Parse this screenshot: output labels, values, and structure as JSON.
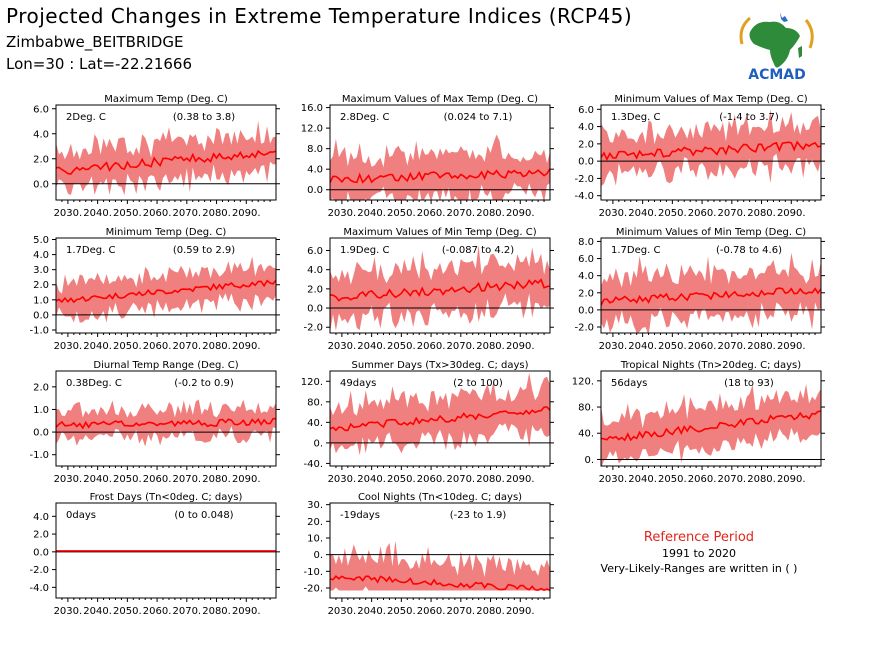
{
  "header": {
    "title": "Projected Changes in Extreme Temperature Indices (RCP45)",
    "subtitle": "Zimbabwe_BEITBRIDGE",
    "coords": "Lon=30 : Lat=-22.21666"
  },
  "logo": {
    "text": "ACMAD",
    "icon": "africa-map-logo"
  },
  "colors": {
    "mean_line": "#ff0000",
    "range_fill": "#f08080",
    "ref_title": "#e0251b"
  },
  "reference": {
    "title": "Reference Period",
    "years": "1991 to 2020",
    "note": "Very-Likely-Ranges are written in ( )"
  },
  "chart_data": [
    {
      "type": "area",
      "title": "Maximum Temp (Deg. C)",
      "value_label": "2Deg. C",
      "range_label": "(0.38 to 3.8)",
      "x_ticks": [
        "2030.",
        "2040.",
        "2050.",
        "2060.",
        "2070.",
        "2080.",
        "2090."
      ],
      "y_ticks": [
        "6.0",
        "4.0",
        "2.0",
        "0.0"
      ],
      "ylim": [
        -1.3,
        6.3
      ],
      "x_range": [
        2026,
        2100
      ],
      "trend": [
        1.0,
        2.6
      ],
      "noise": 0.35,
      "spread": 1.4,
      "grid": false
    },
    {
      "type": "area",
      "title": "Maximum Values of Max Temp (Deg. C)",
      "value_label": "2.8Deg. C",
      "range_label": "(0.024 to 7.1)",
      "x_ticks": [
        "2030.",
        "2040.",
        "2050.",
        "2060.",
        "2070.",
        "2080.",
        "2090."
      ],
      "y_ticks": [
        "16.0",
        "12.0",
        "8.0",
        "4.0",
        "0.0"
      ],
      "ylim": [
        -2.0,
        16.5
      ],
      "x_range": [
        2026,
        2100
      ],
      "trend": [
        2.0,
        3.4
      ],
      "noise": 0.8,
      "spread": 4.0,
      "grid": false
    },
    {
      "type": "area",
      "title": "Minimum Values of Max Temp (Deg. C)",
      "value_label": "1.3Deg. C",
      "range_label": "(-1.4 to 3.7)",
      "x_ticks": [
        "2030.",
        "2040.",
        "2050.",
        "2060.",
        "2070.",
        "2080.",
        "2090."
      ],
      "y_ticks": [
        "6.0",
        "4.0",
        "2.0",
        "0.0",
        "-2.0",
        "-4.0"
      ],
      "ylim": [
        -4.5,
        6.5
      ],
      "x_range": [
        2026,
        2100
      ],
      "trend": [
        0.6,
        1.9
      ],
      "noise": 0.5,
      "spread": 2.3,
      "grid": false
    },
    {
      "type": "area",
      "title": "Minimum Temp (Deg. C)",
      "value_label": "1.7Deg. C",
      "range_label": "(0.59 to 2.9)",
      "x_ticks": [
        "2030.",
        "2040.",
        "2050.",
        "2060.",
        "2070.",
        "2080.",
        "2090."
      ],
      "y_ticks": [
        "5.0",
        "4.0",
        "3.0",
        "2.0",
        "1.0",
        "0.0",
        "-1.0"
      ],
      "ylim": [
        -1.2,
        5.1
      ],
      "x_range": [
        2026,
        2100
      ],
      "trend": [
        0.9,
        2.2
      ],
      "noise": 0.2,
      "spread": 1.0,
      "grid": false
    },
    {
      "type": "area",
      "title": "Maximum Values of Min Temp (Deg. C)",
      "value_label": "1.9Deg. C",
      "range_label": "(-0.087 to 4.2)",
      "x_ticks": [
        "2030.",
        "2040.",
        "2050.",
        "2060.",
        "2070.",
        "2080.",
        "2090."
      ],
      "y_ticks": [
        "6.0",
        "4.0",
        "2.0",
        "0.0",
        "-2.0"
      ],
      "ylim": [
        -2.6,
        7.3
      ],
      "x_range": [
        2026,
        2100
      ],
      "trend": [
        1.1,
        2.6
      ],
      "noise": 0.45,
      "spread": 2.2,
      "grid": false
    },
    {
      "type": "area",
      "title": "Minimum Values of Min Temp (Deg. C)",
      "value_label": "1.7Deg. C",
      "range_label": "(-0.78 to 4.6)",
      "x_ticks": [
        "2030.",
        "2040.",
        "2050.",
        "2060.",
        "2070.",
        "2080.",
        "2090."
      ],
      "y_ticks": [
        "8.0",
        "6.0",
        "4.0",
        "2.0",
        "0.0",
        "-2.0"
      ],
      "ylim": [
        -2.7,
        8.4
      ],
      "x_range": [
        2026,
        2100
      ],
      "trend": [
        1.0,
        2.4
      ],
      "noise": 0.45,
      "spread": 2.5,
      "grid": false
    },
    {
      "type": "area",
      "title": "Diurnal Temp Range (Deg. C)",
      "value_label": "0.38Deg. C",
      "range_label": "(-0.2 to 0.9)",
      "x_ticks": [
        "2030.",
        "2040.",
        "2050.",
        "2060.",
        "2070.",
        "2080.",
        "2090."
      ],
      "y_ticks": [
        "2.0",
        "1.0",
        "0.0",
        "-1.0"
      ],
      "ylim": [
        -1.5,
        2.7
      ],
      "x_range": [
        2026,
        2100
      ],
      "trend": [
        0.3,
        0.45
      ],
      "noise": 0.15,
      "spread": 0.55,
      "grid": false
    },
    {
      "type": "area",
      "title": "Summer Days (Tx>30deg. C; days)",
      "value_label": "49days",
      "range_label": "(2 to 100)",
      "x_ticks": [
        "2030.",
        "2040.",
        "2050.",
        "2060.",
        "2070.",
        "2080.",
        "2090."
      ],
      "y_ticks": [
        "120.",
        "80.",
        "40.",
        "0.",
        "-40."
      ],
      "ylim": [
        -45,
        140
      ],
      "x_range": [
        2026,
        2100
      ],
      "trend": [
        28,
        65
      ],
      "noise": 7,
      "spread": 40,
      "grid": false
    },
    {
      "type": "area",
      "title": "Tropical Nights (Tn>20deg. C; days)",
      "value_label": "56days",
      "range_label": "(18 to 93)",
      "x_ticks": [
        "2030.",
        "2040.",
        "2050.",
        "2060.",
        "2070.",
        "2080.",
        "2090."
      ],
      "y_ticks": [
        "120.",
        "80.",
        "40.",
        "0."
      ],
      "ylim": [
        -10,
        135
      ],
      "x_range": [
        2026,
        2100
      ],
      "trend": [
        30,
        70
      ],
      "noise": 6,
      "spread": 28,
      "grid": false
    },
    {
      "type": "area",
      "title": "Frost Days (Tn<0deg. C; days)",
      "value_label": "0days",
      "range_label": "(0 to 0.048)",
      "x_ticks": [
        "2030.",
        "2040.",
        "2050.",
        "2060.",
        "2070.",
        "2080.",
        "2090."
      ],
      "y_ticks": [
        "4.0",
        "2.0",
        "0.0",
        "-2.0",
        "-4.0"
      ],
      "ylim": [
        -5.2,
        5.5
      ],
      "x_range": [
        2026,
        2100
      ],
      "trend": [
        0.1,
        0.1
      ],
      "noise": 0.0,
      "spread": 0.02,
      "grid": false
    },
    {
      "type": "area",
      "title": "Cool Nights (Tn<10deg. C; days)",
      "value_label": "-19days",
      "range_label": "(-23 to 1.9)",
      "x_ticks": [
        "2030.",
        "2040.",
        "2050.",
        "2060.",
        "2070.",
        "2080.",
        "2090."
      ],
      "y_ticks": [
        "30.",
        "20.",
        "10.",
        "0.",
        "-10.",
        "-20."
      ],
      "ylim": [
        -26,
        31
      ],
      "x_range": [
        2026,
        2100
      ],
      "trend": [
        -13,
        -21
      ],
      "noise": 2,
      "spread": 12,
      "grid": false,
      "floor": -21.5
    }
  ]
}
